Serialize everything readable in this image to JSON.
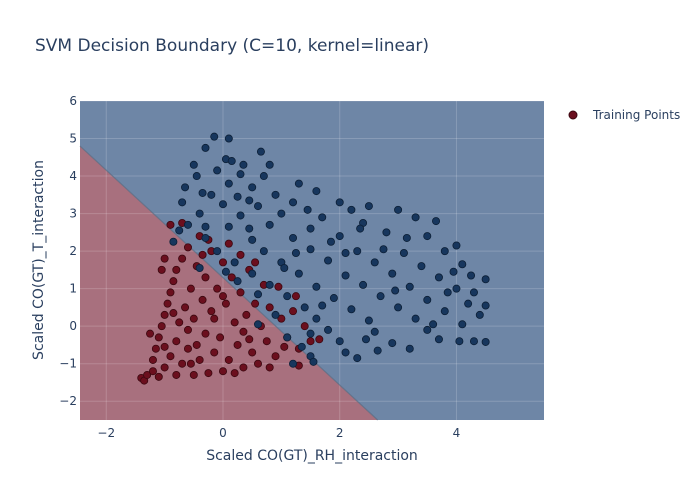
{
  "chart_data": {
    "type": "scatter",
    "title": "SVM Decision Boundary (C=10, kernel=linear)",
    "xlabel": "Scaled CO(GT)_RH_interaction",
    "ylabel": "Scaled CO(GT)_T_interaction",
    "xlim": [
      -2.45,
      5.5
    ],
    "ylim": [
      -2.5,
      6
    ],
    "x_ticks": [
      -2,
      0,
      2,
      4
    ],
    "y_ticks": [
      -2,
      -1,
      0,
      1,
      2,
      3,
      4,
      5,
      6
    ],
    "grid": true,
    "legend": {
      "position": "top-right",
      "entries": [
        "Training Points"
      ]
    },
    "decision_boundary": {
      "points": [
        [
          -2.45,
          4.8
        ],
        [
          2.65,
          -2.5
        ]
      ],
      "region_above_color": "#6e86a6",
      "region_below_color": "#a8707e"
    },
    "class_colors": {
      "class_0": "#6b0f1e",
      "class_1": "#17365d"
    },
    "series": [
      {
        "name": "Training Points",
        "class_0_points": [
          [
            -1.4,
            -1.38
          ],
          [
            -1.35,
            -1.45
          ],
          [
            -1.3,
            -1.3
          ],
          [
            -1.2,
            -1.2
          ],
          [
            -1.2,
            -0.9
          ],
          [
            -1.15,
            -0.6
          ],
          [
            -1.1,
            -1.35
          ],
          [
            -1.1,
            -0.3
          ],
          [
            -1.05,
            0.0
          ],
          [
            -1.0,
            -1.1
          ],
          [
            -1.0,
            0.3
          ],
          [
            -0.95,
            0.6
          ],
          [
            -0.9,
            -0.8
          ],
          [
            -0.9,
            0.9
          ],
          [
            -0.85,
            1.2
          ],
          [
            -0.8,
            -1.3
          ],
          [
            -0.8,
            -0.4
          ],
          [
            -0.8,
            1.5
          ],
          [
            -0.75,
            0.1
          ],
          [
            -0.7,
            1.8
          ],
          [
            -0.7,
            -1.0
          ],
          [
            -0.65,
            0.5
          ],
          [
            -0.6,
            2.1
          ],
          [
            -0.6,
            -0.6
          ],
          [
            -0.55,
            1.0
          ],
          [
            -0.5,
            -1.3
          ],
          [
            -0.5,
            0.2
          ],
          [
            -0.45,
            1.6
          ],
          [
            -0.4,
            -0.9
          ],
          [
            -0.4,
            2.4
          ],
          [
            -0.35,
            0.7
          ],
          [
            -0.3,
            -0.2
          ],
          [
            -0.3,
            1.3
          ],
          [
            -0.25,
            -1.25
          ],
          [
            -0.2,
            0.4
          ],
          [
            -0.2,
            2.0
          ],
          [
            -0.15,
            -0.7
          ],
          [
            -0.1,
            1.0
          ],
          [
            -0.05,
            -0.3
          ],
          [
            0.0,
            1.7
          ],
          [
            0.0,
            -1.2
          ],
          [
            0.05,
            0.6
          ],
          [
            0.1,
            -0.9
          ],
          [
            0.15,
            1.3
          ],
          [
            0.2,
            0.1
          ],
          [
            0.25,
            -0.5
          ],
          [
            0.3,
            0.9
          ],
          [
            0.35,
            -1.1
          ],
          [
            0.4,
            0.3
          ],
          [
            0.45,
            1.5
          ],
          [
            0.5,
            -0.7
          ],
          [
            0.55,
            0.6
          ],
          [
            0.6,
            -1.0
          ],
          [
            0.65,
            0.0
          ],
          [
            0.7,
            1.1
          ],
          [
            0.75,
            -0.4
          ],
          [
            0.8,
            0.5
          ],
          [
            0.9,
            -0.8
          ],
          [
            1.0,
            0.2
          ],
          [
            1.1,
            -0.3
          ],
          [
            1.2,
            0.4
          ],
          [
            1.3,
            -0.6
          ],
          [
            1.4,
            0.0
          ],
          [
            1.5,
            -0.4
          ],
          [
            -0.9,
            2.7
          ],
          [
            -0.7,
            2.75
          ],
          [
            -1.0,
            1.8
          ],
          [
            -1.05,
            1.5
          ],
          [
            -0.25,
            2.3
          ],
          [
            0.1,
            2.2
          ],
          [
            0.3,
            1.9
          ],
          [
            1.25,
            0.8
          ],
          [
            0.95,
            1.05
          ],
          [
            1.65,
            -0.35
          ],
          [
            -1.25,
            -0.2
          ],
          [
            -0.6,
            -0.1
          ],
          [
            -0.45,
            -0.5
          ],
          [
            -0.15,
            0.2
          ],
          [
            0.35,
            -0.15
          ],
          [
            0.8,
            -1.1
          ],
          [
            1.3,
            -1.05
          ],
          [
            0.55,
            1.7
          ],
          [
            -0.85,
            0.35
          ],
          [
            -0.35,
            1.9
          ],
          [
            0.0,
            0.8
          ],
          [
            0.45,
            -0.35
          ],
          [
            1.05,
            -0.55
          ],
          [
            -1.0,
            -0.55
          ],
          [
            -0.55,
            -1.0
          ],
          [
            0.2,
            -1.25
          ]
        ],
        "class_1_points": [
          [
            -0.15,
            5.05
          ],
          [
            0.1,
            5.0
          ],
          [
            0.65,
            4.65
          ],
          [
            -0.3,
            4.75
          ],
          [
            0.05,
            4.45
          ],
          [
            0.15,
            4.4
          ],
          [
            -0.5,
            4.3
          ],
          [
            0.35,
            4.3
          ],
          [
            -0.1,
            4.15
          ],
          [
            0.8,
            4.3
          ],
          [
            0.3,
            4.05
          ],
          [
            -0.45,
            4.0
          ],
          [
            0.7,
            4.0
          ],
          [
            0.1,
            3.8
          ],
          [
            -0.65,
            3.7
          ],
          [
            0.5,
            3.7
          ],
          [
            1.3,
            3.8
          ],
          [
            -0.35,
            3.55
          ],
          [
            0.25,
            3.45
          ],
          [
            0.9,
            3.5
          ],
          [
            1.6,
            3.6
          ],
          [
            -0.7,
            3.3
          ],
          [
            0.0,
            3.25
          ],
          [
            0.6,
            3.2
          ],
          [
            1.2,
            3.3
          ],
          [
            2.0,
            3.3
          ],
          [
            2.5,
            3.2
          ],
          [
            -0.4,
            3.0
          ],
          [
            0.3,
            2.95
          ],
          [
            1.0,
            3.0
          ],
          [
            1.7,
            2.9
          ],
          [
            2.2,
            3.1
          ],
          [
            3.0,
            3.1
          ],
          [
            -0.6,
            2.7
          ],
          [
            0.1,
            2.65
          ],
          [
            0.8,
            2.7
          ],
          [
            1.5,
            2.6
          ],
          [
            2.4,
            2.75
          ],
          [
            3.3,
            2.9
          ],
          [
            3.65,
            2.8
          ],
          [
            -0.3,
            2.35
          ],
          [
            0.5,
            2.3
          ],
          [
            1.2,
            2.35
          ],
          [
            2.0,
            2.4
          ],
          [
            2.8,
            2.5
          ],
          [
            3.5,
            2.4
          ],
          [
            4.0,
            2.15
          ],
          [
            -0.1,
            2.0
          ],
          [
            0.7,
            2.0
          ],
          [
            1.5,
            2.05
          ],
          [
            2.3,
            2.0
          ],
          [
            3.1,
            1.95
          ],
          [
            3.8,
            2.0
          ],
          [
            0.2,
            1.7
          ],
          [
            1.0,
            1.7
          ],
          [
            1.8,
            1.75
          ],
          [
            2.6,
            1.7
          ],
          [
            3.4,
            1.6
          ],
          [
            4.1,
            1.65
          ],
          [
            0.5,
            1.4
          ],
          [
            1.3,
            1.4
          ],
          [
            2.1,
            1.35
          ],
          [
            2.9,
            1.4
          ],
          [
            3.7,
            1.3
          ],
          [
            4.5,
            1.25
          ],
          [
            0.8,
            1.1
          ],
          [
            1.6,
            1.05
          ],
          [
            2.4,
            1.1
          ],
          [
            3.2,
            1.05
          ],
          [
            4.0,
            1.0
          ],
          [
            4.3,
            0.9
          ],
          [
            1.1,
            0.8
          ],
          [
            1.9,
            0.75
          ],
          [
            2.7,
            0.8
          ],
          [
            3.5,
            0.7
          ],
          [
            4.2,
            0.6
          ],
          [
            4.5,
            0.55
          ],
          [
            1.4,
            0.5
          ],
          [
            2.2,
            0.45
          ],
          [
            3.0,
            0.5
          ],
          [
            3.8,
            0.4
          ],
          [
            4.4,
            0.3
          ],
          [
            1.6,
            0.2
          ],
          [
            2.5,
            0.15
          ],
          [
            3.3,
            0.2
          ],
          [
            4.1,
            0.05
          ],
          [
            1.8,
            -0.1
          ],
          [
            2.6,
            -0.15
          ],
          [
            3.5,
            -0.1
          ],
          [
            4.3,
            -0.4
          ],
          [
            4.5,
            -0.42
          ],
          [
            4.05,
            -0.4
          ],
          [
            2.0,
            -0.4
          ],
          [
            2.9,
            -0.45
          ],
          [
            3.7,
            -0.35
          ],
          [
            1.35,
            -0.55
          ],
          [
            2.1,
            -0.7
          ],
          [
            2.65,
            -0.65
          ],
          [
            3.2,
            -0.6
          ],
          [
            1.5,
            -0.8
          ],
          [
            2.3,
            -0.85
          ],
          [
            1.2,
            -1.0
          ],
          [
            1.55,
            -0.95
          ],
          [
            1.5,
            -0.2
          ],
          [
            1.7,
            0.55
          ],
          [
            0.9,
            0.3
          ],
          [
            0.6,
            0.85
          ],
          [
            0.25,
            1.2
          ],
          [
            -0.4,
            1.55
          ],
          [
            -0.3,
            2.65
          ],
          [
            -0.75,
            2.55
          ],
          [
            -0.85,
            2.25
          ],
          [
            1.05,
            1.55
          ],
          [
            2.75,
            2.05
          ],
          [
            3.95,
            1.45
          ],
          [
            2.95,
            0.95
          ],
          [
            3.6,
            0.05
          ],
          [
            4.25,
            1.35
          ],
          [
            1.85,
            2.25
          ],
          [
            0.45,
            2.6
          ],
          [
            1.45,
            3.1
          ],
          [
            2.35,
            2.6
          ],
          [
            3.15,
            2.35
          ],
          [
            0.05,
            1.45
          ],
          [
            0.6,
            0.05
          ],
          [
            1.1,
            -0.3
          ],
          [
            2.45,
            -0.35
          ],
          [
            3.85,
            0.9
          ],
          [
            2.1,
            1.95
          ],
          [
            1.25,
            1.95
          ],
          [
            -0.2,
            3.5
          ],
          [
            0.45,
            3.35
          ]
        ]
      }
    ]
  }
}
